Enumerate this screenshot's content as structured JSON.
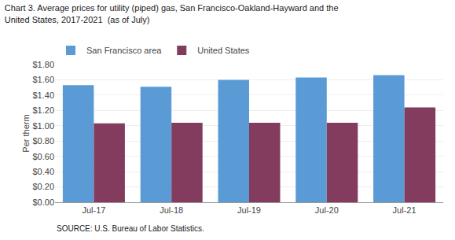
{
  "chart_data": {
    "type": "bar",
    "title": "Chart 3. Average prices for utility (piped) gas, San Francisco-Oakland-Hayward and the\nUnited States, 2017-2021  (as of July)",
    "ylabel": "Per therm",
    "annotations": [
      "SOURCE: U.S. Bureau of Labor Statistics."
    ],
    "categories": [
      "Jul-17",
      "Jul-18",
      "Jul-19",
      "Jul-20",
      "Jul-21"
    ],
    "series": [
      {
        "name": "San Francisco area",
        "color": "#5B9BD5",
        "values": [
          1.53,
          1.51,
          1.6,
          1.63,
          1.66
        ]
      },
      {
        "name": "United States",
        "color": "#833C5E",
        "values": [
          1.03,
          1.04,
          1.04,
          1.04,
          1.24
        ]
      }
    ],
    "ylim": [
      0,
      1.8
    ],
    "yticks": [
      {
        "value": 0.0,
        "label": "$0.00"
      },
      {
        "value": 0.2,
        "label": "$0.20"
      },
      {
        "value": 0.4,
        "label": "$0.40"
      },
      {
        "value": 0.6,
        "label": "$0.60"
      },
      {
        "value": 0.8,
        "label": "$0.80"
      },
      {
        "value": 1.0,
        "label": "$1.00"
      },
      {
        "value": 1.2,
        "label": "$1.20"
      },
      {
        "value": 1.4,
        "label": "$1.40"
      },
      {
        "value": 1.6,
        "label": "$1.60"
      },
      {
        "value": 1.8,
        "label": "$1.80"
      }
    ],
    "grid": true,
    "legend": "upper left"
  }
}
